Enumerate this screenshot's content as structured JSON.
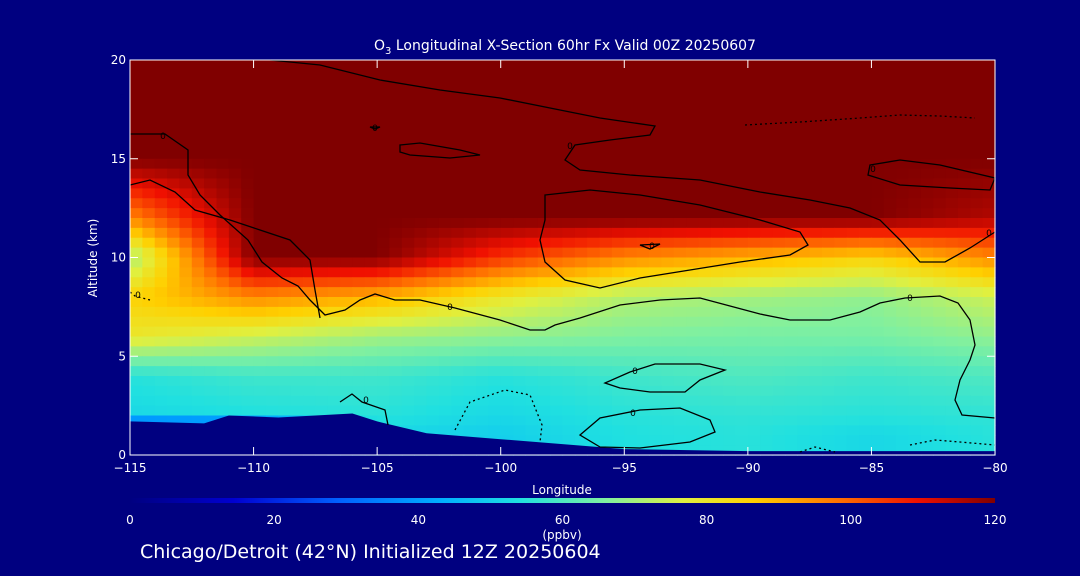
{
  "chart_data": {
    "type": "heatmap",
    "title_prefix": "O",
    "title_sub": "3",
    "title_rest": " Longitudinal X-Section 60hr  Fx Valid 00Z 20250607",
    "xlabel": "Longitude",
    "ylabel": "Altitude (km)",
    "xlim": [
      -115,
      -80
    ],
    "ylim": [
      0,
      20
    ],
    "x_ticks": [
      -115,
      -110,
      -105,
      -100,
      -95,
      -90,
      -85,
      -80
    ],
    "x_tick_labels": [
      "−115",
      "−110",
      "−105",
      "−100",
      "−95",
      "−90",
      "−85",
      "−80"
    ],
    "y_ticks": [
      0,
      5,
      10,
      15,
      20
    ],
    "y_tick_labels": [
      "0",
      "5",
      "10",
      "15",
      "20"
    ],
    "colorbar": {
      "label": "(ppbv)",
      "min": 0,
      "max": 120,
      "ticks": [
        0,
        20,
        40,
        60,
        80,
        100,
        120
      ],
      "tick_labels": [
        "0",
        "20",
        "40",
        "60",
        "80",
        "100",
        "120"
      ]
    },
    "ozone_ppbv_at_longitudes": {
      "longitudes": [
        -115,
        -110,
        -105,
        -100,
        -95,
        -90,
        -85,
        -80
      ],
      "altitudes_km": [
        20,
        15,
        12,
        10,
        8,
        6,
        4,
        2,
        1
      ],
      "values": [
        [
          120,
          120,
          120,
          120,
          120,
          120,
          120,
          120
        ],
        [
          120,
          120,
          120,
          120,
          120,
          120,
          120,
          120
        ],
        [
          95,
          120,
          120,
          120,
          120,
          120,
          120,
          115
        ],
        [
          70,
          120,
          120,
          105,
          95,
          90,
          85,
          95
        ],
        [
          85,
          95,
          90,
          80,
          72,
          70,
          68,
          75
        ],
        [
          80,
          75,
          70,
          68,
          66,
          65,
          65,
          68
        ],
        [
          55,
          58,
          58,
          55,
          58,
          60,
          58,
          60
        ],
        [
          52,
          54,
          55,
          52,
          55,
          56,
          55,
          56
        ],
        [
          0,
          0,
          52,
          50,
          54,
          55,
          52,
          55
        ]
      ]
    },
    "terrain_altitude_km": {
      "longitudes": [
        -115,
        -112,
        -111,
        -109,
        -106,
        -105,
        -103,
        -100,
        -97,
        -95,
        -90,
        -85,
        -80
      ],
      "values": [
        1.7,
        1.6,
        2.0,
        1.9,
        2.1,
        1.7,
        1.1,
        0.8,
        0.5,
        0.3,
        0.2,
        0.2,
        0.2
      ]
    },
    "contour_labels": [
      "0",
      "0",
      "0",
      "0",
      "0",
      "0",
      "0",
      "0",
      "0",
      "0",
      "0",
      "0"
    ],
    "subtitle": "Chicago/Detroit (42°N) Initialized 12Z 20250604"
  }
}
